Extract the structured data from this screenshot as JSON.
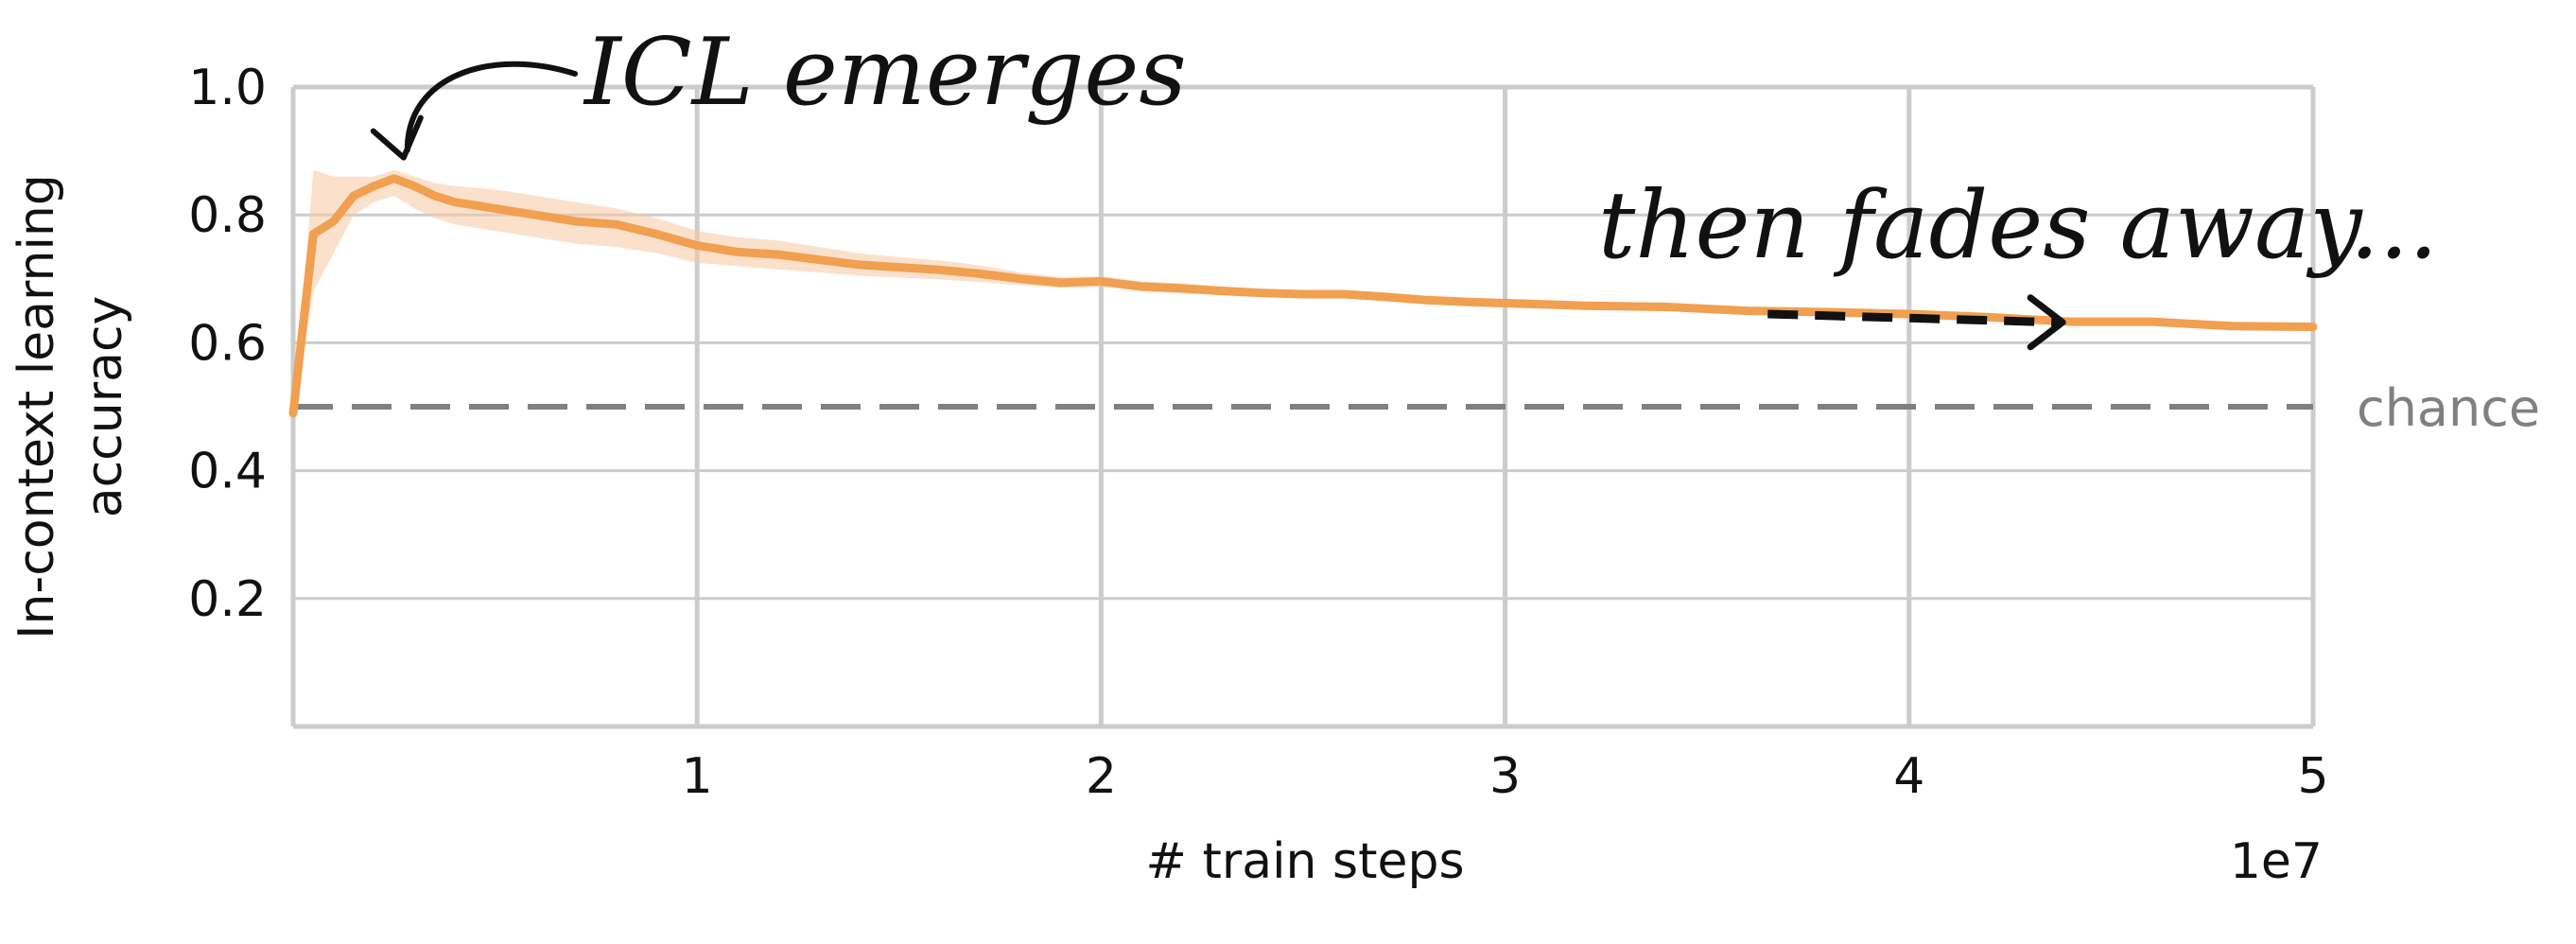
{
  "chart_data": {
    "type": "line",
    "title": "",
    "xlabel": "# train steps",
    "ylabel_lines": [
      "In-context learning",
      "accuracy"
    ],
    "x_multiplier_label": "1e7",
    "xlim": [
      0,
      5
    ],
    "ylim": [
      0,
      1
    ],
    "x_ticks": [
      1,
      2,
      3,
      4,
      5
    ],
    "x_tick_labels": [
      "1",
      "2",
      "3",
      "4",
      "5"
    ],
    "y_ticks": [
      0.2,
      0.4,
      0.6,
      0.8,
      1.0
    ],
    "y_tick_labels": [
      "0.2",
      "0.4",
      "0.6",
      "0.8",
      "1.0"
    ],
    "grid": true,
    "colors": {
      "line": "#F0A050",
      "band": "#F7C9A0",
      "grid": "#CCCCCC",
      "reference": "#808080",
      "annotation": "#111111"
    },
    "series": [
      {
        "x": [
          0.0,
          0.05,
          0.1,
          0.15,
          0.2,
          0.25,
          0.3,
          0.35,
          0.4,
          0.5,
          0.6,
          0.7,
          0.8,
          0.9,
          1.0,
          1.1,
          1.2,
          1.3,
          1.4,
          1.5,
          1.6,
          1.7,
          1.8,
          1.9,
          2.0,
          2.1,
          2.2,
          2.3,
          2.4,
          2.5,
          2.6,
          2.7,
          2.8,
          2.9,
          3.0,
          3.2,
          3.4,
          3.6,
          3.8,
          4.0,
          4.2,
          4.4,
          4.6,
          4.8,
          5.0
        ],
        "y": [
          0.49,
          0.77,
          0.79,
          0.83,
          0.845,
          0.857,
          0.845,
          0.83,
          0.82,
          0.81,
          0.8,
          0.79,
          0.785,
          0.77,
          0.752,
          0.742,
          0.738,
          0.73,
          0.722,
          0.718,
          0.714,
          0.708,
          0.7,
          0.694,
          0.696,
          0.688,
          0.685,
          0.681,
          0.678,
          0.676,
          0.676,
          0.672,
          0.667,
          0.664,
          0.662,
          0.658,
          0.656,
          0.65,
          0.648,
          0.645,
          0.64,
          0.633,
          0.633,
          0.626,
          0.625
        ],
        "y_lower": [
          0.49,
          0.68,
          0.74,
          0.8,
          0.82,
          0.83,
          0.81,
          0.795,
          0.785,
          0.775,
          0.765,
          0.755,
          0.75,
          0.74,
          0.725,
          0.72,
          0.715,
          0.71,
          0.705,
          0.702,
          0.699,
          0.695,
          0.69,
          0.686,
          0.688,
          0.68,
          0.677,
          0.674,
          0.672,
          0.67,
          0.67,
          0.667,
          0.662,
          0.66,
          0.658,
          0.654,
          0.652,
          0.646,
          0.644,
          0.641,
          0.636,
          0.629,
          0.629,
          0.622,
          0.621
        ],
        "y_upper": [
          0.49,
          0.87,
          0.86,
          0.86,
          0.86,
          0.87,
          0.86,
          0.85,
          0.845,
          0.84,
          0.83,
          0.82,
          0.81,
          0.795,
          0.775,
          0.765,
          0.76,
          0.75,
          0.74,
          0.734,
          0.729,
          0.721,
          0.71,
          0.703,
          0.704,
          0.696,
          0.693,
          0.688,
          0.684,
          0.682,
          0.682,
          0.677,
          0.672,
          0.668,
          0.666,
          0.662,
          0.66,
          0.654,
          0.652,
          0.649,
          0.644,
          0.637,
          0.637,
          0.63,
          0.629
        ]
      }
    ],
    "reference_lines": [
      {
        "y": 0.5,
        "label": "chance",
        "style": "dashed"
      }
    ],
    "annotations": [
      {
        "text": "ICL emerges",
        "points_to": {
          "x": 0.25,
          "y": 0.86
        }
      },
      {
        "text": "then fades away...",
        "arrow_from": {
          "x": 3.65,
          "y": 0.645
        },
        "arrow_to": {
          "x": 4.38,
          "y": 0.632
        }
      }
    ]
  }
}
